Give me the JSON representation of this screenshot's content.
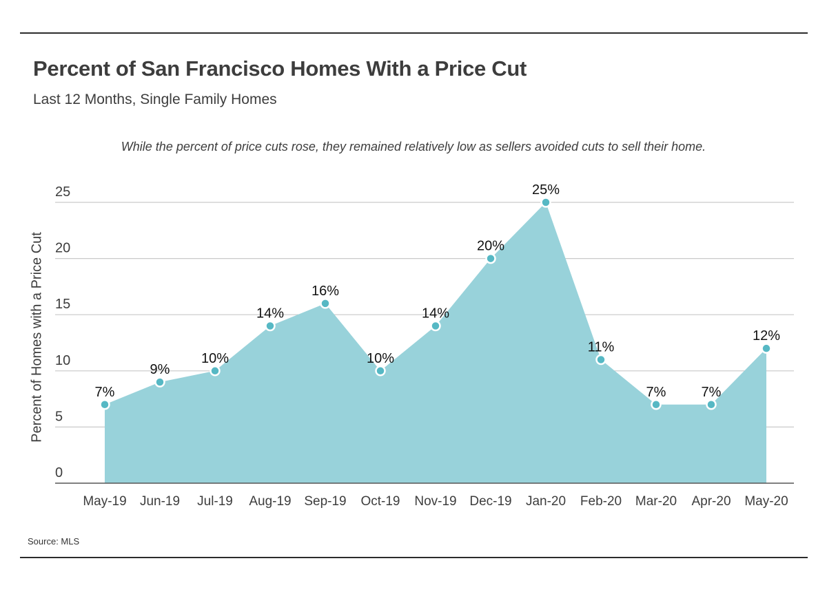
{
  "header": {
    "title": "Percent of San Francisco Homes With a Price Cut",
    "subtitle": "Last 12 Months, Single Family Homes",
    "annotation": "While the percent of price cuts rose, they remained relatively low as sellers avoided cuts to sell their home."
  },
  "footer": {
    "source": "Source: MLS"
  },
  "chart_data": {
    "type": "area",
    "title": "Percent of San Francisco Homes With a Price Cut",
    "subtitle": "Last 12 Months, Single Family Homes",
    "xlabel": "",
    "ylabel": "Percent of Homes with a Price Cut",
    "ylim": [
      0,
      25
    ],
    "yticks": [
      0,
      5,
      10,
      15,
      20,
      25
    ],
    "grid": true,
    "categories": [
      "May-19",
      "Jun-19",
      "Jul-19",
      "Aug-19",
      "Sep-19",
      "Oct-19",
      "Nov-19",
      "Dec-19",
      "Jan-20",
      "Feb-20",
      "Mar-20",
      "Apr-20",
      "May-20"
    ],
    "series": [
      {
        "values": [
          7,
          9,
          10,
          14,
          16,
          10,
          14,
          20,
          25,
          11,
          7,
          7,
          12
        ],
        "data_labels": [
          "7%",
          "9%",
          "10%",
          "14%",
          "16%",
          "10%",
          "14%",
          "20%",
          "25%",
          "11%",
          "7%",
          "7%",
          "12%"
        ],
        "color": "#98d2da",
        "marker_color": "#56b8c4"
      }
    ],
    "grid_color": "#c9c9c9",
    "axis_color": "#555555"
  }
}
